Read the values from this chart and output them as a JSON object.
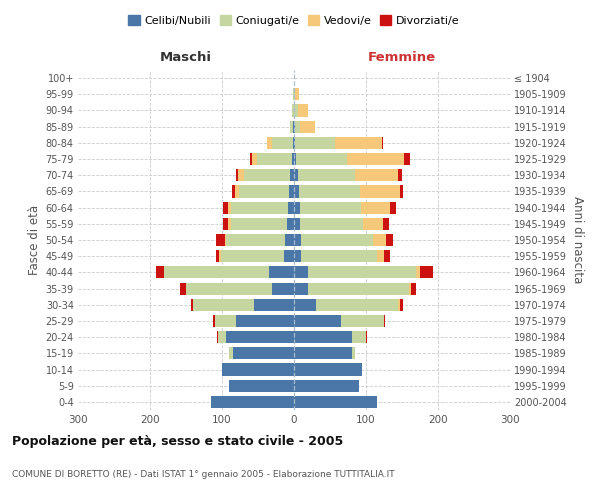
{
  "age_groups": [
    "100+",
    "95-99",
    "90-94",
    "85-89",
    "80-84",
    "75-79",
    "70-74",
    "65-69",
    "60-64",
    "55-59",
    "50-54",
    "45-49",
    "40-44",
    "35-39",
    "30-34",
    "25-29",
    "20-24",
    "15-19",
    "10-14",
    "5-9",
    "0-4"
  ],
  "birth_years": [
    "≤ 1904",
    "1905-1909",
    "1910-1914",
    "1915-1919",
    "1920-1924",
    "1925-1929",
    "1930-1934",
    "1935-1939",
    "1940-1944",
    "1945-1949",
    "1950-1954",
    "1955-1959",
    "1960-1964",
    "1965-1969",
    "1970-1974",
    "1975-1979",
    "1980-1984",
    "1985-1989",
    "1990-1994",
    "1995-1999",
    "2000-2004"
  ],
  "male": {
    "celibi": [
      0,
      0,
      0,
      1,
      2,
      3,
      5,
      7,
      9,
      10,
      12,
      14,
      35,
      30,
      55,
      80,
      95,
      85,
      100,
      90,
      115
    ],
    "coniugati": [
      0,
      1,
      3,
      5,
      28,
      48,
      65,
      70,
      78,
      78,
      82,
      88,
      145,
      120,
      85,
      30,
      10,
      5,
      0,
      0,
      0
    ],
    "vedovi": [
      0,
      0,
      0,
      0,
      8,
      8,
      8,
      5,
      4,
      3,
      2,
      2,
      0,
      0,
      0,
      0,
      0,
      0,
      0,
      0,
      0
    ],
    "divorziati": [
      0,
      0,
      0,
      0,
      0,
      2,
      2,
      4,
      8,
      8,
      12,
      5,
      12,
      8,
      3,
      2,
      2,
      0,
      0,
      0,
      0
    ]
  },
  "female": {
    "nubili": [
      0,
      0,
      0,
      1,
      2,
      3,
      5,
      7,
      8,
      8,
      10,
      10,
      20,
      20,
      30,
      65,
      80,
      80,
      95,
      90,
      115
    ],
    "coniugate": [
      0,
      2,
      5,
      8,
      55,
      70,
      80,
      85,
      85,
      88,
      100,
      105,
      150,
      140,
      115,
      60,
      20,
      5,
      0,
      0,
      0
    ],
    "vedove": [
      0,
      5,
      15,
      20,
      65,
      80,
      60,
      55,
      40,
      28,
      18,
      10,
      5,
      2,
      2,
      0,
      0,
      0,
      0,
      0,
      0
    ],
    "divorziate": [
      0,
      0,
      0,
      0,
      2,
      8,
      5,
      5,
      8,
      8,
      10,
      8,
      18,
      8,
      5,
      2,
      2,
      0,
      0,
      0,
      0
    ]
  },
  "colors": {
    "celibi": "#4a76a8",
    "coniugati": "#c5d6a0",
    "vedovi": "#f5c87a",
    "divorziati": "#cc1111"
  },
  "title": "Popolazione per età, sesso e stato civile - 2005",
  "subtitle": "COMUNE DI BORETTO (RE) - Dati ISTAT 1° gennaio 2005 - Elaborazione TUTTITALIA.IT",
  "xlabel_left": "Maschi",
  "xlabel_right": "Femmine",
  "ylabel_left": "Fasce di età",
  "ylabel_right": "Anni di nascita",
  "xlim": 300,
  "legend_labels": [
    "Celibi/Nubili",
    "Coniugati/e",
    "Vedovi/e",
    "Divorziati/e"
  ],
  "bg_color": "#ffffff",
  "grid_color": "#cccccc",
  "text_color": "#555555"
}
